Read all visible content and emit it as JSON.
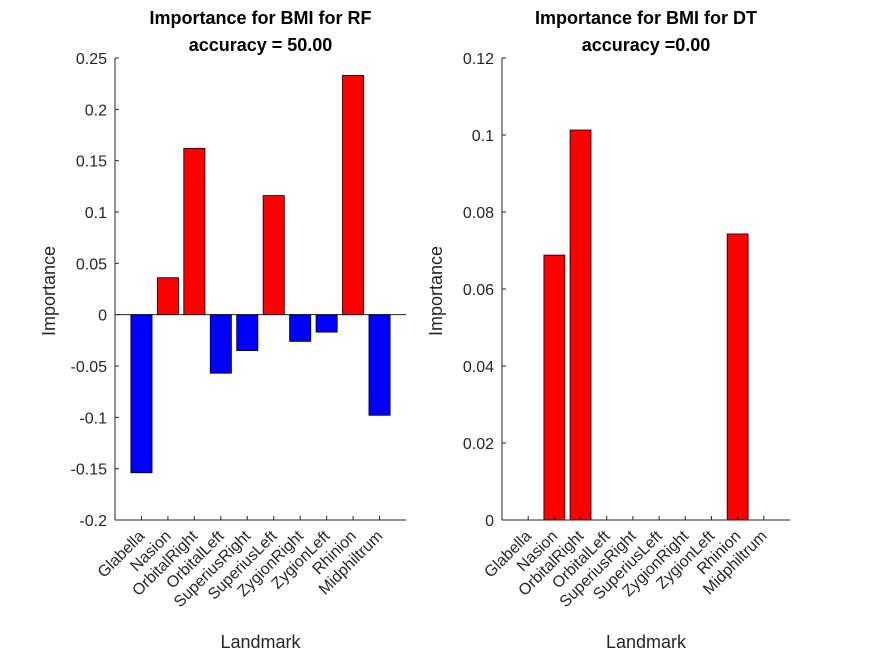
{
  "chart_data": [
    {
      "type": "bar",
      "title": [
        "Importance for BMI for RF",
        "accuracy = 50.00"
      ],
      "xlabel": "Landmark",
      "ylabel": "Importance",
      "categories": [
        "Glabella",
        "Nasion",
        "OrbitalRight",
        "OrbitalLeft",
        "SuperiusRight",
        "SuperiusLeft",
        "ZygionRight",
        "ZygionLeft",
        "Rhinion",
        "Midphiltrum"
      ],
      "values": [
        -0.154,
        0.036,
        0.162,
        -0.057,
        -0.035,
        0.116,
        -0.026,
        -0.017,
        0.233,
        -0.098
      ],
      "ylim": [
        -0.2,
        0.25
      ],
      "yticks": [
        -0.2,
        -0.15,
        -0.1,
        -0.05,
        0,
        0.05,
        0.1,
        0.15,
        0.2,
        0.25
      ],
      "ytick_labels": [
        "-0.2",
        "-0.15",
        "-0.1",
        "-0.05",
        "0",
        "0.05",
        "0.1",
        "0.15",
        "0.2",
        "0.25"
      ],
      "positive_color": "#ff0000",
      "negative_color": "#0000ff",
      "grid": false
    },
    {
      "type": "bar",
      "title": [
        "Importance for BMI for DT",
        "accuracy =0.00"
      ],
      "xlabel": "Landmark",
      "ylabel": "Importance",
      "categories": [
        "Glabella",
        "Nasion",
        "OrbitalRight",
        "OrbitalLeft",
        "SuperiusRight",
        "SuperiusLeft",
        "ZygionRight",
        "ZygionLeft",
        "Rhinion",
        "Midphiltrum"
      ],
      "values": [
        0,
        0.0688,
        0.1013,
        0,
        0,
        0,
        0,
        0,
        0.0743,
        0
      ],
      "ylim": [
        0,
        0.12
      ],
      "yticks": [
        0,
        0.02,
        0.04,
        0.06,
        0.08,
        0.1,
        0.12
      ],
      "ytick_labels": [
        "0",
        "0.02",
        "0.04",
        "0.06",
        "0.08",
        "0.1",
        "0.12"
      ],
      "positive_color": "#ff0000",
      "negative_color": "#0000ff",
      "grid": false
    }
  ]
}
